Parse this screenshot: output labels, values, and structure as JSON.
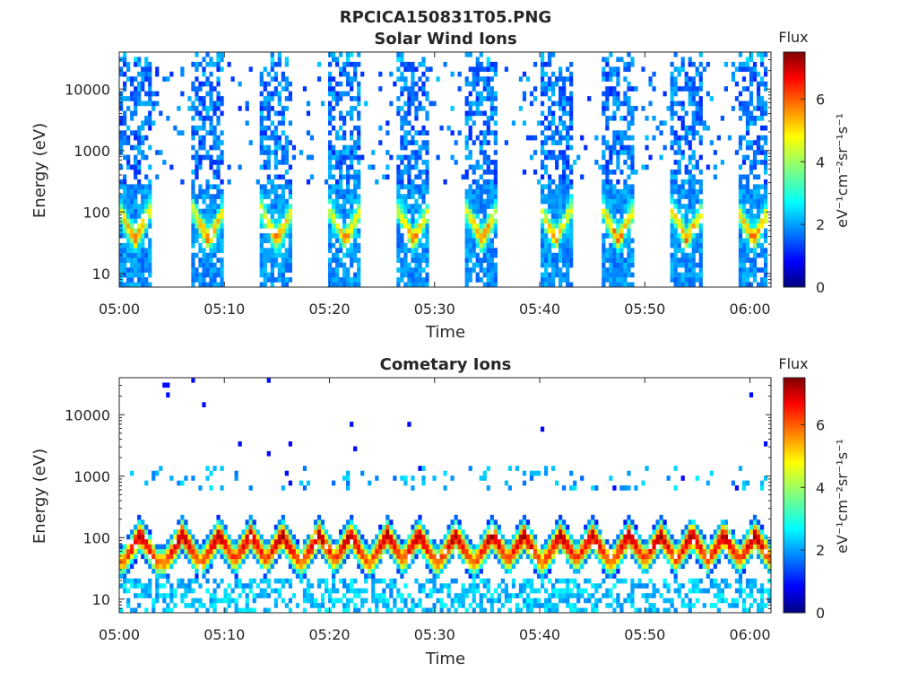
{
  "figure": {
    "title": "RPCICA150831T05.PNG"
  },
  "chart_data": [
    {
      "type": "heatmap",
      "title": "Solar Wind Ions",
      "xlabel": "Time",
      "ylabel": "Energy (eV)",
      "x_ticks": [
        "05:00",
        "05:10",
        "05:20",
        "05:30",
        "05:40",
        "05:50",
        "06:00"
      ],
      "y_ticks": [
        "10",
        "100",
        "1000",
        "10000"
      ],
      "y_scale": "log",
      "xlim": [
        "05:00",
        "06:02"
      ],
      "ylim": [
        6,
        40000
      ],
      "colorbar": {
        "label": "Flux",
        "unit": "eV⁻¹cm⁻²sr⁻¹s⁻¹",
        "ticks": [
          "0",
          "2",
          "4",
          "6"
        ],
        "range": [
          0,
          7.5
        ],
        "colormap": "jet"
      },
      "scan_centers_min": [
        1.5,
        8.5,
        15.0,
        21.5,
        28.0,
        34.5,
        41.5,
        47.5,
        54.0,
        60.3
      ],
      "scan_width_min": 3.0,
      "peak_energy_eV": 35,
      "peak_flux": 5.8,
      "background_flux_high_energy": 1.8,
      "background_energy_range_eV": [
        300,
        30000
      ],
      "grid": false
    },
    {
      "type": "heatmap",
      "title": "Cometary Ions",
      "xlabel": "Time",
      "ylabel": "Energy (eV)",
      "x_ticks": [
        "05:00",
        "05:10",
        "05:20",
        "05:30",
        "05:40",
        "05:50",
        "06:00"
      ],
      "y_ticks": [
        "10",
        "100",
        "1000",
        "10000"
      ],
      "y_scale": "log",
      "xlim": [
        "05:00",
        "06:02"
      ],
      "ylim": [
        6,
        40000
      ],
      "colorbar": {
        "label": "Flux",
        "unit": "eV⁻¹cm⁻²sr⁻¹s⁻¹",
        "ticks": [
          "0",
          "2",
          "4",
          "6"
        ],
        "range": [
          0,
          7.5
        ],
        "colormap": "jet"
      },
      "scan_centers_min": [
        2.0,
        6.0,
        9.5,
        12.5,
        15.5,
        19.0,
        22.0,
        25.5,
        28.5,
        32.0,
        35.5,
        38.5,
        42.0,
        45.0,
        48.5,
        51.5,
        54.5,
        57.5,
        60.5
      ],
      "scan_width_min": 3.2,
      "peak_energy_eV": 40,
      "peak_flux": 7.3,
      "scattered_points_flux": 1.0,
      "grid": false
    }
  ]
}
